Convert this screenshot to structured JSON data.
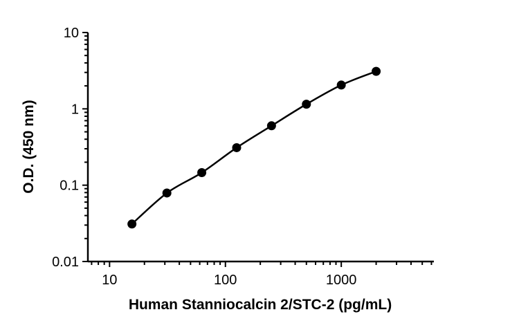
{
  "chart_data": {
    "type": "scatter",
    "xlabel": "Human Stanniocalcin 2/STC-2 (pg/mL)",
    "ylabel": "O.D. (450 nm)",
    "xscale": "log",
    "yscale": "log",
    "xlim": [
      6.5,
      6300
    ],
    "ylim": [
      0.01,
      10
    ],
    "x_ticks": [
      10,
      100,
      1000
    ],
    "x_tick_labels": [
      "10",
      "100",
      "1000"
    ],
    "y_ticks": [
      0.01,
      0.1,
      1,
      10
    ],
    "y_tick_labels": [
      "0.01",
      "0.1",
      "1",
      "10"
    ],
    "grid": false,
    "fit_line": true,
    "series": [
      {
        "x": [
          15.6,
          31.25,
          62.5,
          125,
          250,
          500,
          1000,
          2000
        ],
        "y": [
          0.031,
          0.079,
          0.146,
          0.31,
          0.6,
          1.15,
          2.05,
          3.1
        ]
      }
    ],
    "colors": {
      "marker": "#000000",
      "line": "#000000",
      "axis": "#000000"
    }
  }
}
